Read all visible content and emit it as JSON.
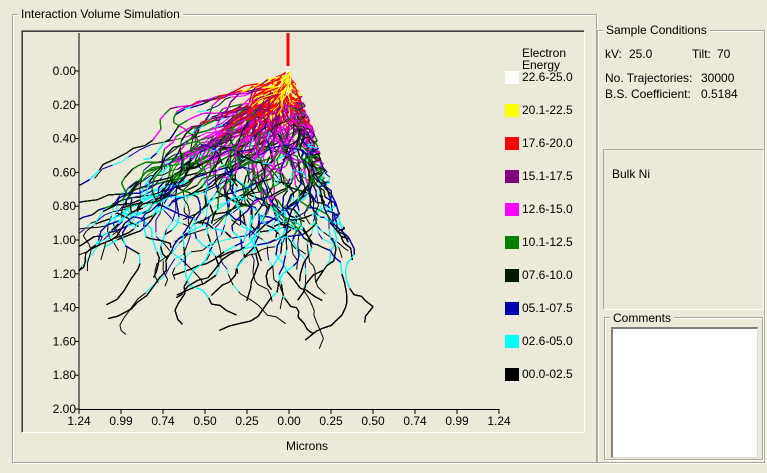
{
  "simulation": {
    "title": "Interaction Volume Simulation",
    "x_axis_label": "Microns"
  },
  "legend": {
    "title_line1": "Electron",
    "title_line2": "Energy",
    "items": [
      {
        "label": "22.6-25.0",
        "color": "#ffffff"
      },
      {
        "label": "20.1-22.5",
        "color": "#ffff00"
      },
      {
        "label": "17.6-20.0",
        "color": "#ff0000"
      },
      {
        "label": "15.1-17.5",
        "color": "#800080"
      },
      {
        "label": "12.6-15.0",
        "color": "#ff00ff"
      },
      {
        "label": "10.1-12.5",
        "color": "#008000"
      },
      {
        "label": "07.6-10.0",
        "color": "#001a00"
      },
      {
        "label": "05.1-07.5",
        "color": "#0000aa"
      },
      {
        "label": "02.6-05.0",
        "color": "#00ffff"
      },
      {
        "label": "00.0-02.5",
        "color": "#000000"
      }
    ]
  },
  "sample_conditions": {
    "title": "Sample Conditions",
    "kv_label": "kV:",
    "kv_value": "25.0",
    "tilt_label": "Tilt:",
    "tilt_value": "70",
    "trajectories_label": "No. Trajectories:",
    "trajectories_value": "30000",
    "bs_label": "B.S. Coefficient:",
    "bs_value": "0.5184"
  },
  "sample": {
    "name": "Bulk Ni"
  },
  "comments": {
    "title": "Comments",
    "value": ""
  },
  "chart_data": {
    "type": "scatter",
    "title": "",
    "xlabel": "Microns",
    "ylabel": "",
    "x_ticks": [
      "1.24",
      "0.99",
      "0.74",
      "0.50",
      "0.25",
      "0.00",
      "0.25",
      "0.50",
      "0.74",
      "0.99",
      "1.24"
    ],
    "y_ticks": [
      "0.00",
      "0.20",
      "0.40",
      "0.60",
      "0.80",
      "1.00",
      "1.20",
      "1.40",
      "1.60",
      "1.80",
      "2.00"
    ],
    "xlim": [
      -1.24,
      1.24
    ],
    "ylim": [
      2.0,
      -0.2
    ],
    "beam_x": 0.0,
    "tilt_degrees": 70,
    "energy_bands_keV": [
      "22.6-25.0",
      "20.1-22.5",
      "17.6-20.0",
      "15.1-17.5",
      "12.6-15.0",
      "10.1-12.5",
      "07.6-10.0",
      "05.1-07.5",
      "02.6-05.0",
      "00.0-02.5"
    ]
  }
}
